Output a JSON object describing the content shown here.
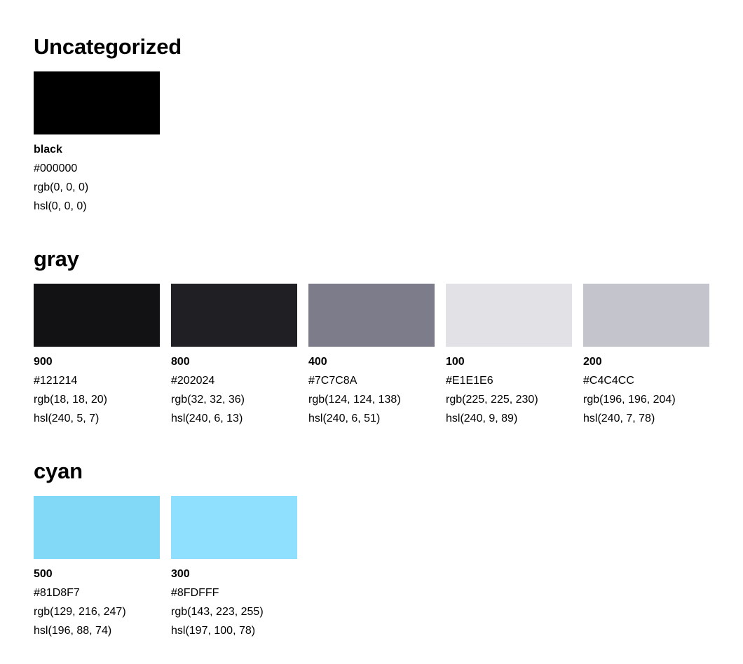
{
  "groups": [
    {
      "title": "Uncategorized",
      "swatches": [
        {
          "name": "black",
          "hex": "#000000",
          "rgb": "rgb(0, 0, 0)",
          "hsl": "hsl(0, 0, 0)",
          "color": "#000000"
        }
      ]
    },
    {
      "title": "gray",
      "swatches": [
        {
          "name": "900",
          "hex": "#121214",
          "rgb": "rgb(18, 18, 20)",
          "hsl": "hsl(240, 5, 7)",
          "color": "#121214"
        },
        {
          "name": "800",
          "hex": "#202024",
          "rgb": "rgb(32, 32, 36)",
          "hsl": "hsl(240, 6, 13)",
          "color": "#202024"
        },
        {
          "name": "400",
          "hex": "#7C7C8A",
          "rgb": "rgb(124, 124, 138)",
          "hsl": "hsl(240, 6, 51)",
          "color": "#7C7C8A"
        },
        {
          "name": "100",
          "hex": "#E1E1E6",
          "rgb": "rgb(225, 225, 230)",
          "hsl": "hsl(240, 9, 89)",
          "color": "#E1E1E6"
        },
        {
          "name": "200",
          "hex": "#C4C4CC",
          "rgb": "rgb(196, 196, 204)",
          "hsl": "hsl(240, 7, 78)",
          "color": "#C4C4CC"
        }
      ]
    },
    {
      "title": "cyan",
      "swatches": [
        {
          "name": "500",
          "hex": "#81D8F7",
          "rgb": "rgb(129, 216, 247)",
          "hsl": "hsl(196, 88, 74)",
          "color": "#81D8F7"
        },
        {
          "name": "300",
          "hex": "#8FDFFF",
          "rgb": "rgb(143, 223, 255)",
          "hsl": "hsl(197, 100, 78)",
          "color": "#8FDFFF"
        }
      ]
    }
  ]
}
